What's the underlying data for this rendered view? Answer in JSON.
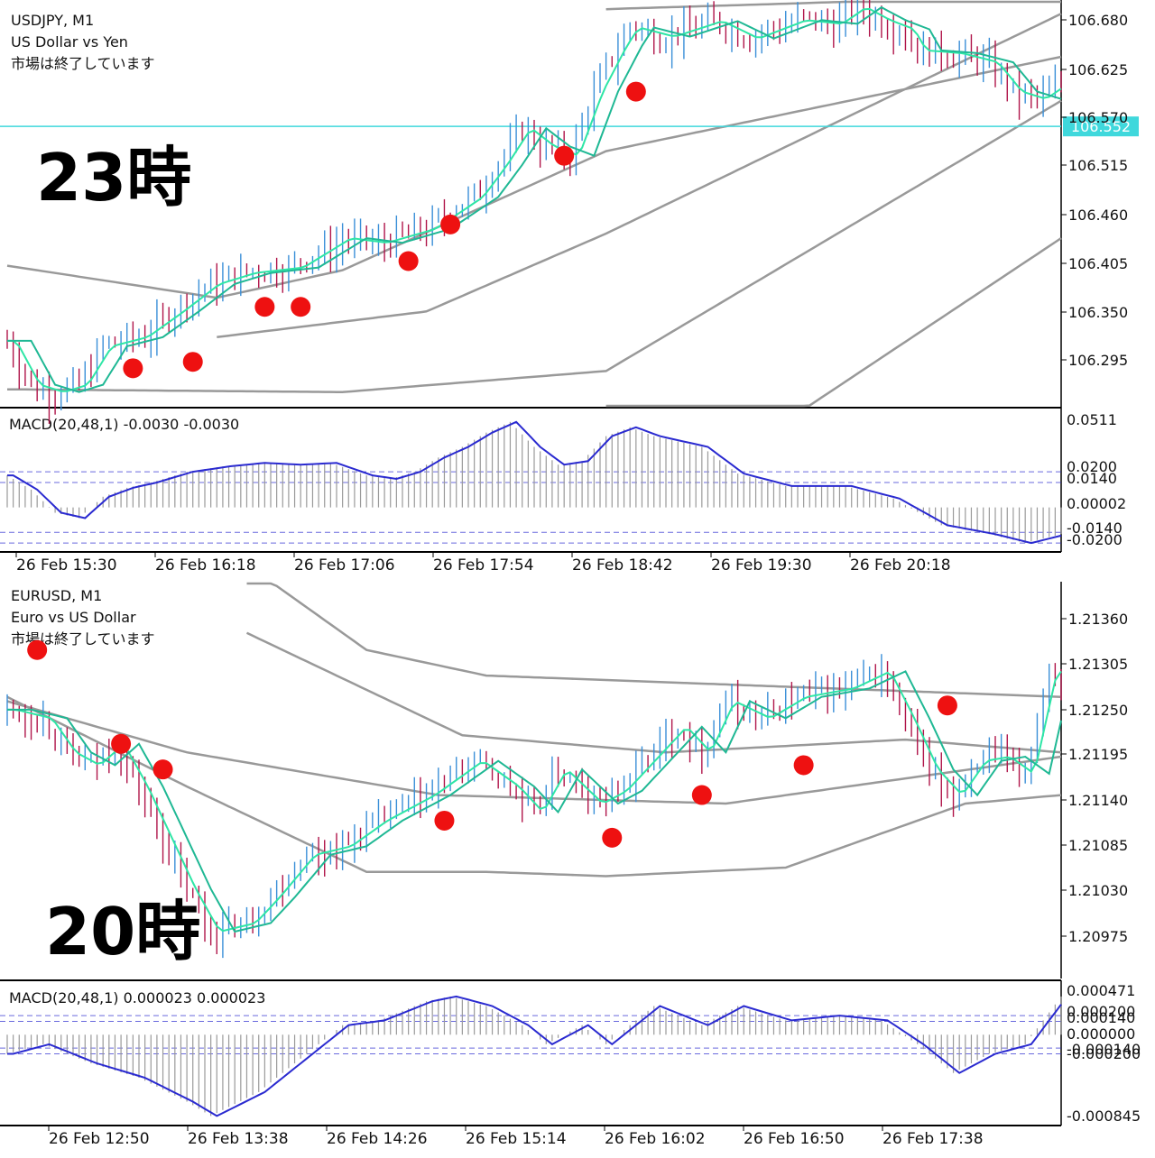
{
  "colors": {
    "bull": "#3a8fd8",
    "bear": "#b0154a",
    "ma_fast": "#2ee6a6",
    "ma_slow": "#1fb894",
    "bands": "#999999",
    "macd_line": "#2a2ad0",
    "macd_hist": "#9a9a9a",
    "level_line": "#3fd8dc",
    "marker": "#ee1111",
    "frame": "#000000"
  },
  "chart_data": [
    {
      "type": "candlestick",
      "symbol": "USDJPY, M1",
      "description": "US Dollar vs Yen",
      "status": "市場は終了しています",
      "label_overlay": "23時",
      "price_axis": {
        "ticks": [
          "106.680",
          "106.625",
          "106.570",
          "106.515",
          "106.460",
          "106.405",
          "106.350",
          "106.295"
        ],
        "ylim": [
          106.245,
          106.69
        ]
      },
      "current_price": "106.552",
      "time_axis": [
        "26 Feb 15:30",
        "26 Feb 16:18",
        "26 Feb 17:06",
        "26 Feb 17:54",
        "26 Feb 18:42",
        "26 Feb 19:30",
        "26 Feb 20:18"
      ],
      "price_path": [
        [
          0,
          106.318
        ],
        [
          4,
          106.27
        ],
        [
          8,
          106.262
        ],
        [
          12,
          106.27
        ],
        [
          16,
          106.312
        ],
        [
          22,
          106.322
        ],
        [
          28,
          106.35
        ],
        [
          34,
          106.38
        ],
        [
          40,
          106.392
        ],
        [
          48,
          106.398
        ],
        [
          56,
          106.43
        ],
        [
          62,
          106.425
        ],
        [
          70,
          106.44
        ],
        [
          78,
          106.475
        ],
        [
          82,
          106.51
        ],
        [
          86,
          106.55
        ],
        [
          90,
          106.53
        ],
        [
          94,
          106.52
        ],
        [
          98,
          106.59
        ],
        [
          102,
          106.64
        ],
        [
          104,
          106.66
        ],
        [
          110,
          106.65
        ],
        [
          118,
          106.667
        ],
        [
          124,
          106.648
        ],
        [
          132,
          106.668
        ],
        [
          138,
          106.664
        ],
        [
          142,
          106.682
        ],
        [
          146,
          106.668
        ],
        [
          150,
          106.658
        ],
        [
          152,
          106.635
        ],
        [
          158,
          106.632
        ],
        [
          164,
          106.622
        ],
        [
          168,
          106.59
        ],
        [
          172,
          106.582
        ],
        [
          176,
          106.6
        ]
      ],
      "bands_center": [
        [
          0,
          106.4
        ],
        [
          35,
          106.365
        ],
        [
          56,
          106.395
        ],
        [
          100,
          106.525
        ],
        [
          176,
          106.628
        ]
      ],
      "bands_upper": [
        [
          35,
          106.322
        ],
        [
          70,
          106.35
        ],
        [
          100,
          106.435
        ],
        [
          176,
          106.675
        ]
      ],
      "bands_lower": [
        [
          0,
          106.265
        ],
        [
          56,
          106.262
        ],
        [
          100,
          106.285
        ],
        [
          176,
          106.58
        ]
      ],
      "bands_upper_outer": [
        [
          100,
          106.68
        ],
        [
          150,
          106.69
        ],
        [
          176,
          106.688
        ]
      ],
      "bands_lower_outer": [
        [
          100,
          106.195
        ],
        [
          130,
          106.23
        ],
        [
          176,
          106.43
        ]
      ],
      "markers": [
        [
          21,
          106.288
        ],
        [
          31,
          106.295
        ],
        [
          43,
          106.355
        ],
        [
          49,
          106.355
        ],
        [
          67,
          106.405
        ],
        [
          74,
          106.445
        ],
        [
          93,
          106.52
        ],
        [
          105,
          106.59
        ]
      ]
    },
    {
      "type": "histogram",
      "title": "MACD(20,48,1) -0.0030 -0.0030",
      "ticks": [
        "0.0511",
        "0.0200",
        "0.0140",
        "0.00002",
        "-0.0140",
        "-0.0200"
      ],
      "ylim": [
        -0.025,
        0.055
      ],
      "levels": [
        0.02,
        0.014,
        -0.014,
        -0.02
      ],
      "values": [
        [
          0,
          0.018
        ],
        [
          4,
          0.01
        ],
        [
          8,
          -0.003
        ],
        [
          12,
          -0.006
        ],
        [
          16,
          0.006
        ],
        [
          20,
          0.011
        ],
        [
          24,
          0.014
        ],
        [
          30,
          0.02
        ],
        [
          36,
          0.023
        ],
        [
          42,
          0.025
        ],
        [
          48,
          0.024
        ],
        [
          54,
          0.025
        ],
        [
          60,
          0.018
        ],
        [
          64,
          0.016
        ],
        [
          68,
          0.02
        ],
        [
          72,
          0.028
        ],
        [
          76,
          0.034
        ],
        [
          80,
          0.042
        ],
        [
          84,
          0.048
        ],
        [
          88,
          0.034
        ],
        [
          92,
          0.024
        ],
        [
          96,
          0.026
        ],
        [
          100,
          0.04
        ],
        [
          104,
          0.045
        ],
        [
          108,
          0.04
        ],
        [
          116,
          0.034
        ],
        [
          122,
          0.019
        ],
        [
          130,
          0.012
        ],
        [
          140,
          0.012
        ],
        [
          148,
          0.005
        ],
        [
          156,
          -0.01
        ],
        [
          164,
          -0.015
        ],
        [
          170,
          -0.02
        ],
        [
          176,
          -0.015
        ]
      ]
    },
    {
      "type": "candlestick",
      "symbol": "EURUSD, M1",
      "description": "Euro vs US Dollar",
      "status": "市場は終了しています",
      "label_overlay": "20時",
      "price_axis": {
        "ticks": [
          "1.21360",
          "1.21305",
          "1.21250",
          "1.21195",
          "1.21140",
          "1.21085",
          "1.21030",
          "1.20975"
        ],
        "ylim": [
          1.20935,
          1.214
        ]
      },
      "time_axis": [
        "26 Feb 12:50",
        "26 Feb 13:38",
        "26 Feb 14:26",
        "26 Feb 15:14",
        "26 Feb 16:02",
        "26 Feb 16:50",
        "26 Feb 17:38"
      ],
      "price_path": [
        [
          0,
          1.2125
        ],
        [
          6,
          1.2124
        ],
        [
          10,
          1.212
        ],
        [
          14,
          1.21185
        ],
        [
          18,
          1.2121
        ],
        [
          22,
          1.2116
        ],
        [
          26,
          1.211
        ],
        [
          30,
          1.2104
        ],
        [
          34,
          1.2099
        ],
        [
          40,
          1.21
        ],
        [
          44,
          1.2103
        ],
        [
          50,
          1.2108
        ],
        [
          56,
          1.2109
        ],
        [
          62,
          1.2112
        ],
        [
          70,
          1.2115
        ],
        [
          74,
          1.2117
        ],
        [
          78,
          1.2119
        ],
        [
          84,
          1.2116
        ],
        [
          88,
          1.2113
        ],
        [
          92,
          1.2118
        ],
        [
          98,
          1.2114
        ],
        [
          102,
          1.21155
        ],
        [
          108,
          1.212
        ],
        [
          112,
          1.2123
        ],
        [
          116,
          1.212
        ],
        [
          120,
          1.2126
        ],
        [
          126,
          1.2124
        ],
        [
          132,
          1.21265
        ],
        [
          140,
          1.21275
        ],
        [
          146,
          1.21295
        ],
        [
          150,
          1.2124
        ],
        [
          154,
          1.2118
        ],
        [
          158,
          1.2115
        ],
        [
          162,
          1.2119
        ],
        [
          166,
          1.21195
        ],
        [
          170,
          1.21175
        ],
        [
          174,
          1.213
        ],
        [
          176,
          1.2128
        ]
      ],
      "bands_center": [
        [
          0,
          1.2126
        ],
        [
          30,
          1.212
        ],
        [
          72,
          1.2115
        ],
        [
          120,
          1.2114
        ],
        [
          176,
          1.21195
        ]
      ],
      "bands_upper": [
        [
          40,
          1.2134
        ],
        [
          76,
          1.2122
        ],
        [
          110,
          1.212
        ],
        [
          150,
          1.21215
        ],
        [
          176,
          1.212
        ]
      ],
      "bands_lower": [
        [
          0,
          1.21265
        ],
        [
          30,
          1.2116
        ],
        [
          60,
          1.2106
        ],
        [
          80,
          1.2106
        ],
        [
          100,
          1.21055
        ],
        [
          130,
          1.21065
        ],
        [
          160,
          1.2114
        ],
        [
          176,
          1.2115
        ]
      ],
      "bands_upper_outer": [
        [
          40,
          1.2142
        ],
        [
          60,
          1.2132
        ],
        [
          80,
          1.2129
        ],
        [
          176,
          1.21265
        ]
      ],
      "markers": [
        [
          5,
          1.2132
        ],
        [
          19,
          1.2121
        ],
        [
          26,
          1.2118
        ],
        [
          73,
          1.2112
        ],
        [
          101,
          1.211
        ],
        [
          116,
          1.2115
        ],
        [
          133,
          1.21185
        ],
        [
          157,
          1.21255
        ]
      ]
    },
    {
      "type": "histogram",
      "title": "MACD(20,48,1) 0.000023 0.000023",
      "ticks": [
        "0.000471",
        "0.000200",
        "0.000140",
        "0.000000",
        "-0.000140",
        "-0.000200",
        "-0.000845"
      ],
      "ylim": [
        -0.00095,
        0.00055
      ],
      "levels": [
        0.0002,
        0.00014,
        -0.00014,
        -0.0002
      ],
      "values": [
        [
          0,
          -0.0002
        ],
        [
          6,
          -0.0001
        ],
        [
          14,
          -0.0003
        ],
        [
          22,
          -0.00045
        ],
        [
          30,
          -0.0007
        ],
        [
          34,
          -0.00085
        ],
        [
          42,
          -0.0006
        ],
        [
          50,
          -0.0002
        ],
        [
          56,
          0.0001
        ],
        [
          62,
          0.00015
        ],
        [
          70,
          0.00035
        ],
        [
          74,
          0.0004
        ],
        [
          80,
          0.0003
        ],
        [
          86,
          0.0001
        ],
        [
          90,
          -0.0001
        ],
        [
          96,
          0.0001
        ],
        [
          100,
          -0.0001
        ],
        [
          108,
          0.0003
        ],
        [
          116,
          0.0001
        ],
        [
          122,
          0.0003
        ],
        [
          130,
          0.00015
        ],
        [
          138,
          0.0002
        ],
        [
          146,
          0.00015
        ],
        [
          152,
          -0.0001
        ],
        [
          158,
          -0.0004
        ],
        [
          164,
          -0.0002
        ],
        [
          170,
          -0.0001
        ],
        [
          176,
          0.0004
        ]
      ]
    }
  ]
}
